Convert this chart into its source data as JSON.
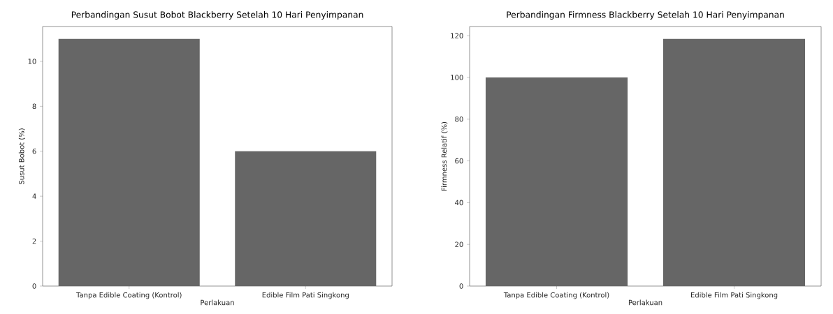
{
  "chart_data": [
    {
      "type": "bar",
      "title": "Perbandingan Susut Bobot Blackberry Setelah 10 Hari Penyimpanan",
      "xlabel": "Perlakuan",
      "ylabel": "Susut Bobot (%)",
      "categories": [
        "Tanpa Edible Coating (Kontrol)",
        "Edible Film Pati Singkong"
      ],
      "values": [
        11,
        6
      ],
      "color": "#666666",
      "ylim": [
        0,
        11.55
      ],
      "yticks": [
        0,
        2,
        4,
        6,
        8,
        10
      ]
    },
    {
      "type": "bar",
      "title": "Perbandingan Firmness Blackberry Setelah 10 Hari Penyimpanan",
      "xlabel": "Perlakuan",
      "ylabel": "Firmness Relatif (%)",
      "categories": [
        "Tanpa Edible Coating (Kontrol)",
        "Edible Film Pati Singkong"
      ],
      "values": [
        100,
        118.5
      ],
      "color": "#666666",
      "ylim": [
        0,
        124.4
      ],
      "yticks": [
        0,
        20,
        40,
        60,
        80,
        100,
        120
      ]
    }
  ]
}
